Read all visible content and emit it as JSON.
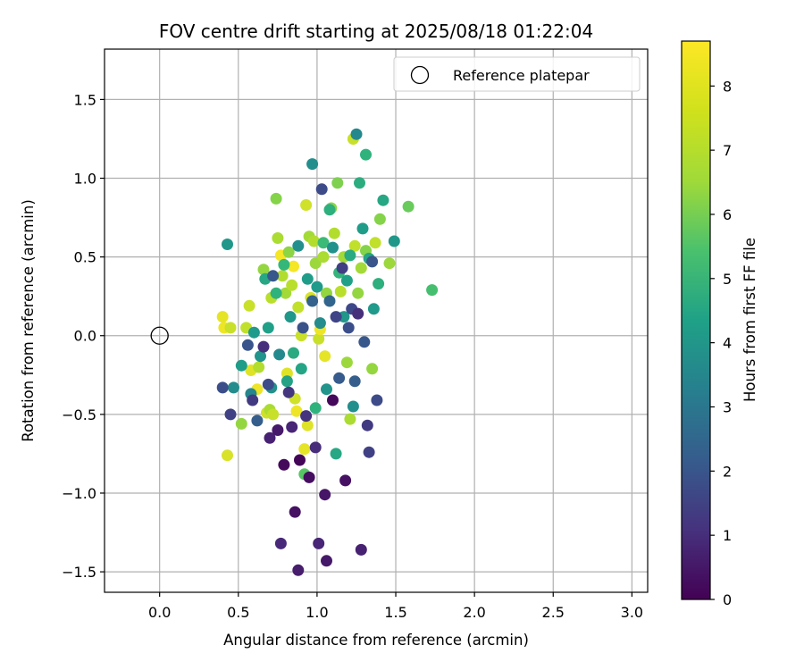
{
  "chart_data": {
    "type": "scatter",
    "title": "FOV centre drift starting at 2025/08/18 01:22:04",
    "xlabel": "Angular distance from reference (arcmin)",
    "ylabel": "Rotation from reference (arcmin)",
    "xlim": [
      -0.35,
      3.1
    ],
    "ylim": [
      -1.63,
      1.82
    ],
    "xticks": [
      0.0,
      0.5,
      1.0,
      1.5,
      2.0,
      2.5,
      3.0
    ],
    "xtick_labels": [
      "0.0",
      "0.5",
      "1.0",
      "1.5",
      "2.0",
      "2.5",
      "3.0"
    ],
    "yticks": [
      -1.5,
      -1.0,
      -0.5,
      0.0,
      0.5,
      1.0,
      1.5
    ],
    "ytick_labels": [
      "−1.5",
      "−1.0",
      "−0.5",
      "0.0",
      "0.5",
      "1.0",
      "1.5"
    ],
    "grid": true,
    "legend": {
      "position": "top-right",
      "entries": [
        "Reference platepar"
      ]
    },
    "reference": {
      "name": "Reference platepar",
      "x": 0.0,
      "y": 0.0
    },
    "colorbar": {
      "label": "Hours from first FF file",
      "colormap": "viridis",
      "range": [
        0,
        8.7
      ],
      "ticks": [
        0,
        1,
        2,
        3,
        4,
        5,
        6,
        7,
        8
      ],
      "tick_labels": [
        "0",
        "1",
        "2",
        "3",
        "4",
        "5",
        "6",
        "7",
        "8"
      ]
    },
    "points": [
      [
        0.4,
        0.12,
        8.4
      ],
      [
        0.41,
        0.05,
        8.5
      ],
      [
        0.43,
        -0.76,
        8.2
      ],
      [
        0.45,
        0.05,
        8.0
      ],
      [
        0.52,
        -0.56,
        7.3
      ],
      [
        0.55,
        0.05,
        7.9
      ],
      [
        0.57,
        0.19,
        8.0
      ],
      [
        0.58,
        -0.22,
        8.3
      ],
      [
        0.62,
        -0.34,
        8.5
      ],
      [
        0.63,
        -0.2,
        7.7
      ],
      [
        0.66,
        0.42,
        7.3
      ],
      [
        0.68,
        -0.49,
        8.1
      ],
      [
        0.7,
        -0.47,
        7.6
      ],
      [
        0.71,
        0.24,
        7.8
      ],
      [
        0.72,
        -0.5,
        8.0
      ],
      [
        0.74,
        0.87,
        7.1
      ],
      [
        0.75,
        0.62,
        7.6
      ],
      [
        0.77,
        0.51,
        8.6
      ],
      [
        0.78,
        0.38,
        7.7
      ],
      [
        0.8,
        0.27,
        7.5
      ],
      [
        0.81,
        -0.24,
        8.3
      ],
      [
        0.82,
        0.53,
        7.2
      ],
      [
        0.84,
        0.32,
        7.8
      ],
      [
        0.85,
        0.44,
        8.6
      ],
      [
        0.86,
        -0.4,
        8.1
      ],
      [
        0.87,
        -0.48,
        8.5
      ],
      [
        0.88,
        0.18,
        7.9
      ],
      [
        0.9,
        0.0,
        8.0
      ],
      [
        0.92,
        -0.72,
        8.4
      ],
      [
        0.93,
        0.83,
        8.1
      ],
      [
        0.94,
        -0.57,
        8.3
      ],
      [
        0.95,
        0.63,
        7.5
      ],
      [
        0.96,
        0.24,
        8.2
      ],
      [
        0.98,
        0.6,
        7.7
      ],
      [
        0.99,
        0.46,
        7.4
      ],
      [
        1.01,
        -0.02,
        8.0
      ],
      [
        1.02,
        0.04,
        8.5
      ],
      [
        1.04,
        0.5,
        7.6
      ],
      [
        1.05,
        -0.13,
        8.4
      ],
      [
        1.06,
        0.27,
        7.3
      ],
      [
        1.09,
        0.81,
        7.2
      ],
      [
        1.11,
        0.65,
        7.7
      ],
      [
        1.13,
        0.97,
        7.0
      ],
      [
        1.15,
        0.28,
        7.8
      ],
      [
        1.17,
        0.5,
        7.5
      ],
      [
        1.19,
        -0.17,
        7.4
      ],
      [
        1.21,
        -0.53,
        7.6
      ],
      [
        1.23,
        1.25,
        8.0
      ],
      [
        1.24,
        0.57,
        7.9
      ],
      [
        1.26,
        0.27,
        7.3
      ],
      [
        1.28,
        0.43,
        7.5
      ],
      [
        1.31,
        0.54,
        7.1
      ],
      [
        1.35,
        -0.21,
        7.3
      ],
      [
        1.37,
        0.59,
        7.9
      ],
      [
        1.4,
        0.74,
        7.1
      ],
      [
        1.46,
        0.46,
        7.4
      ],
      [
        1.58,
        0.82,
        6.7
      ],
      [
        1.73,
        0.29,
        6.1
      ],
      [
        0.43,
        0.58,
        4.6
      ],
      [
        0.47,
        -0.33,
        4.2
      ],
      [
        0.52,
        -0.19,
        4.8
      ],
      [
        0.58,
        -0.37,
        4.0
      ],
      [
        0.6,
        0.02,
        4.7
      ],
      [
        0.64,
        -0.13,
        4.5
      ],
      [
        0.67,
        0.36,
        5.2
      ],
      [
        0.69,
        0.05,
        4.9
      ],
      [
        0.71,
        -0.33,
        4.4
      ],
      [
        0.74,
        0.27,
        5.6
      ],
      [
        0.76,
        -0.12,
        4.1
      ],
      [
        0.79,
        0.45,
        5.8
      ],
      [
        0.81,
        -0.29,
        5.0
      ],
      [
        0.83,
        0.12,
        4.6
      ],
      [
        0.85,
        -0.11,
        5.3
      ],
      [
        0.88,
        0.57,
        4.3
      ],
      [
        0.9,
        -0.21,
        5.1
      ],
      [
        0.92,
        -0.88,
        6.4
      ],
      [
        0.94,
        0.36,
        4.8
      ],
      [
        0.97,
        1.09,
        4.3
      ],
      [
        0.99,
        -0.46,
        5.6
      ],
      [
        1.0,
        0.31,
        4.7
      ],
      [
        1.02,
        0.08,
        4.2
      ],
      [
        1.04,
        0.59,
        5.9
      ],
      [
        1.06,
        -0.34,
        4.5
      ],
      [
        1.08,
        0.8,
        5.5
      ],
      [
        1.1,
        0.56,
        4.4
      ],
      [
        1.12,
        -0.75,
        5.2
      ],
      [
        1.14,
        0.4,
        5.7
      ],
      [
        1.17,
        0.12,
        4.6
      ],
      [
        1.19,
        0.35,
        4.9
      ],
      [
        1.21,
        0.51,
        5.3
      ],
      [
        1.23,
        -0.45,
        4.3
      ],
      [
        1.25,
        1.28,
        4.1
      ],
      [
        1.27,
        0.97,
        5.4
      ],
      [
        1.29,
        0.68,
        4.8
      ],
      [
        1.31,
        1.15,
        5.6
      ],
      [
        1.33,
        0.49,
        5.1
      ],
      [
        1.36,
        0.17,
        4.7
      ],
      [
        1.39,
        0.33,
        5.5
      ],
      [
        1.42,
        0.86,
        5.2
      ],
      [
        1.49,
        0.6,
        4.6
      ],
      [
        0.4,
        -0.33,
        2.1
      ],
      [
        0.45,
        -0.5,
        1.7
      ],
      [
        0.56,
        -0.06,
        2.3
      ],
      [
        0.59,
        -0.41,
        1.5
      ],
      [
        0.62,
        -0.54,
        2.6
      ],
      [
        0.66,
        -0.07,
        1.2
      ],
      [
        0.69,
        -0.31,
        2.0
      ],
      [
        0.7,
        -0.65,
        0.8
      ],
      [
        0.72,
        0.38,
        2.4
      ],
      [
        0.75,
        -0.6,
        0.6
      ],
      [
        0.77,
        -1.32,
        1.0
      ],
      [
        0.79,
        -0.82,
        0.2
      ],
      [
        0.82,
        -0.36,
        1.4
      ],
      [
        0.84,
        -0.58,
        0.9
      ],
      [
        0.86,
        -1.12,
        0.4
      ],
      [
        0.88,
        -1.49,
        0.7
      ],
      [
        0.89,
        -0.79,
        0.1
      ],
      [
        0.91,
        0.05,
        2.2
      ],
      [
        0.93,
        -0.51,
        1.3
      ],
      [
        0.95,
        -0.9,
        0.3
      ],
      [
        0.97,
        0.22,
        2.7
      ],
      [
        0.99,
        -0.71,
        1.1
      ],
      [
        1.01,
        -1.32,
        0.9
      ],
      [
        1.03,
        0.93,
        2.0
      ],
      [
        1.05,
        -1.01,
        0.5
      ],
      [
        1.06,
        -1.43,
        0.6
      ],
      [
        1.08,
        0.22,
        2.8
      ],
      [
        1.1,
        -0.41,
        0.2
      ],
      [
        1.12,
        0.12,
        1.8
      ],
      [
        1.14,
        -0.27,
        2.5
      ],
      [
        1.16,
        0.43,
        1.6
      ],
      [
        1.18,
        -0.92,
        0.4
      ],
      [
        1.2,
        0.05,
        2.1
      ],
      [
        1.22,
        0.17,
        1.9
      ],
      [
        1.24,
        -0.29,
        2.6
      ],
      [
        1.26,
        0.14,
        1.2
      ],
      [
        1.28,
        -1.36,
        0.8
      ],
      [
        1.3,
        -0.04,
        2.4
      ],
      [
        1.32,
        -0.57,
        1.5
      ],
      [
        1.33,
        -0.74,
        1.7
      ],
      [
        1.35,
        0.47,
        2.3
      ],
      [
        1.38,
        -0.41,
        2.0
      ]
    ]
  }
}
